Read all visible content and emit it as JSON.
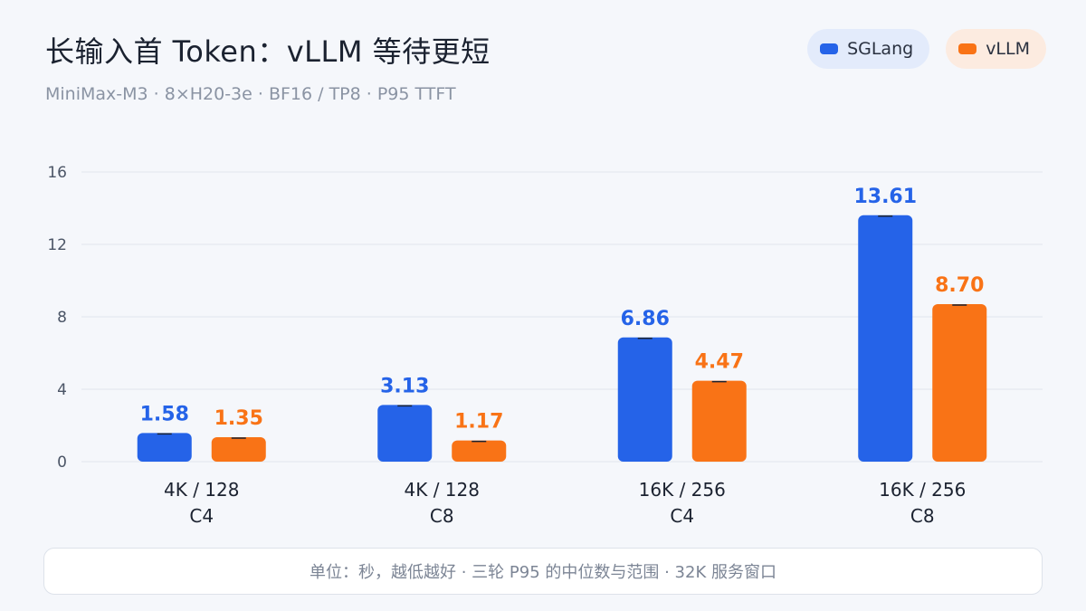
{
  "header": {
    "title": "长输入首 Token：vLLM 等待更短",
    "subtitle": "MiniMax-M3  ·  8×H20-3e  ·  BF16 / TP8  ·  P95 TTFT"
  },
  "footer": {
    "note": "单位：秒，越低越好  ·  三轮 P95 的中位数与范围  ·  32K 服务窗口"
  },
  "colors": {
    "sglang": "#2563e8",
    "vllm": "#f97316",
    "grid": "#e1e5ec",
    "axis_text": "#4b5566",
    "category_text": "#1b2230"
  },
  "chart_data": {
    "type": "bar",
    "categories": [
      [
        "4K / 128",
        "C4"
      ],
      [
        "4K / 128",
        "C8"
      ],
      [
        "16K / 256",
        "C4"
      ],
      [
        "16K / 256",
        "C8"
      ]
    ],
    "series": [
      {
        "name": "SGLang",
        "values": [
          1.58,
          3.13,
          6.86,
          13.61
        ],
        "labels": [
          "1.58",
          "3.13",
          "6.86",
          "13.61"
        ]
      },
      {
        "name": "vLLM",
        "values": [
          1.35,
          1.17,
          4.47,
          8.7
        ],
        "labels": [
          "1.35",
          "1.17",
          "4.47",
          "8.70"
        ]
      }
    ],
    "ylim": [
      0,
      16
    ],
    "yticks": [
      0,
      4,
      8,
      12,
      16
    ],
    "grid": true,
    "legend_position": "top-right",
    "error_bars": true
  }
}
